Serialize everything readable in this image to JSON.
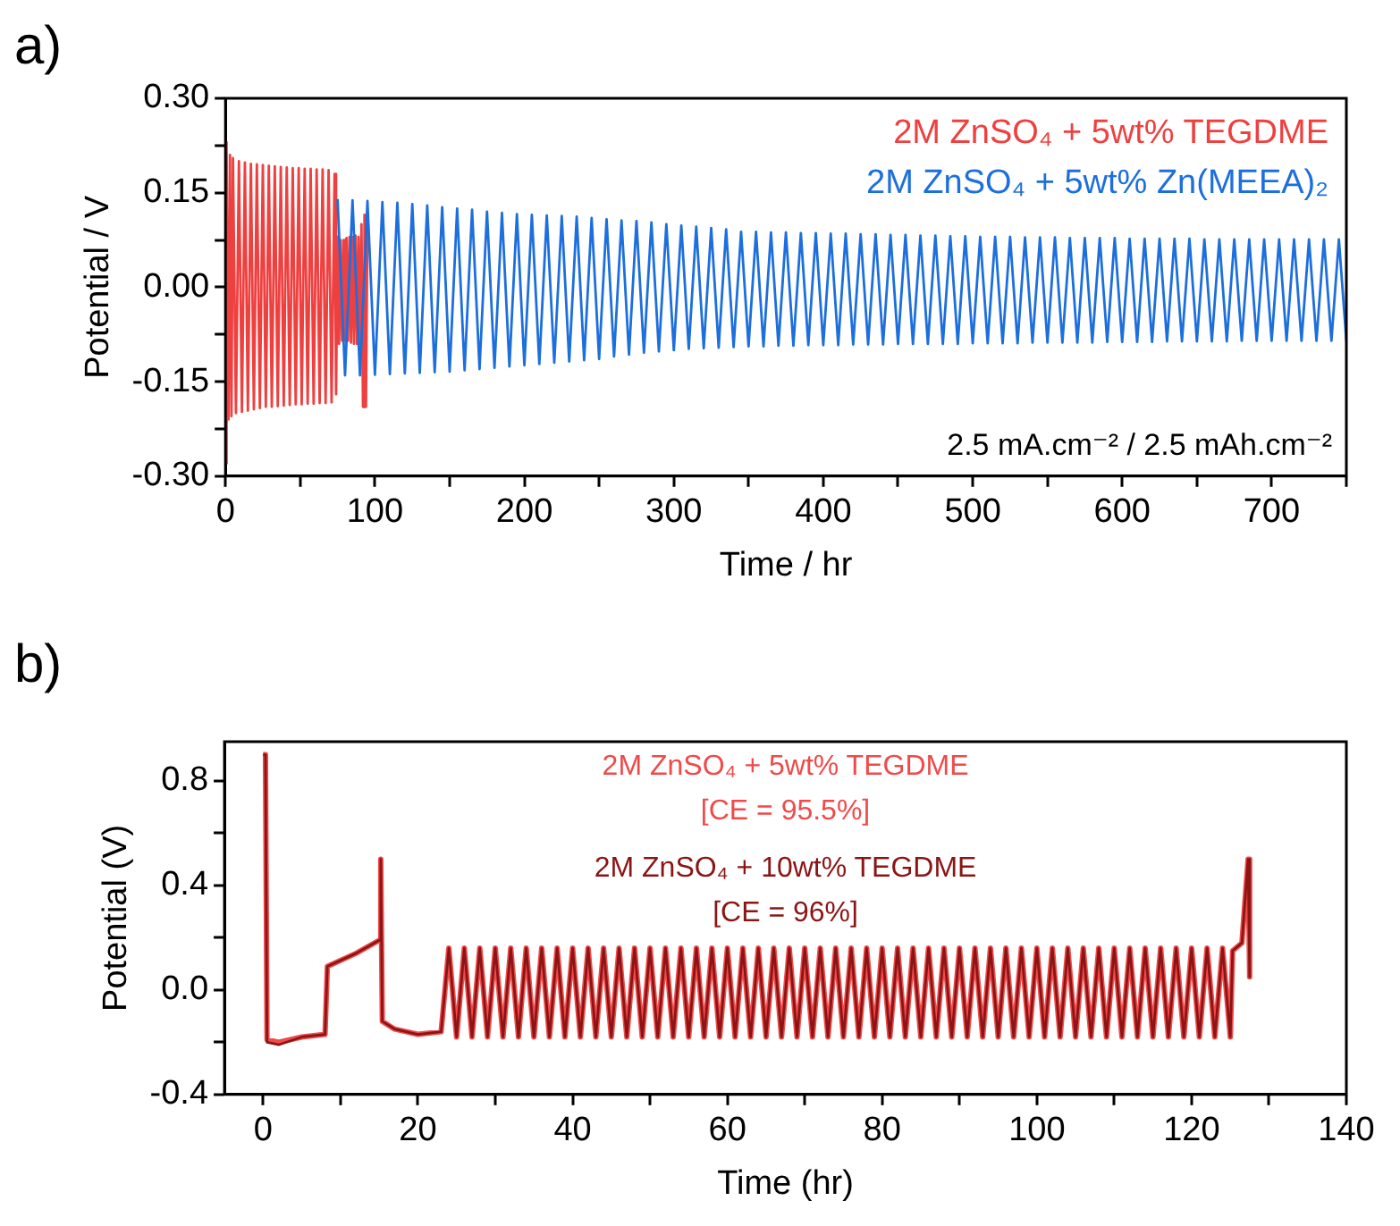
{
  "chart_data": [
    {
      "type": "line",
      "title": "a)",
      "xlabel": "Time / hr",
      "ylabel": "Potential / V",
      "xlim": [
        0,
        750
      ],
      "ylim": [
        -0.3,
        0.3
      ],
      "xticks": [
        0,
        {
          "value": 50,
          "label": null
        },
        100,
        {
          "value": 150,
          "label": null
        },
        200,
        {
          "value": 250,
          "label": null
        },
        300,
        {
          "value": 350,
          "label": null
        },
        400,
        {
          "value": 450,
          "label": null
        },
        500,
        {
          "value": 550,
          "label": null
        },
        600,
        {
          "value": 650,
          "label": null
        },
        700,
        {
          "value": 750,
          "label": null
        }
      ],
      "yticks": [
        {
          "value": -0.3,
          "label": "-0.30"
        },
        {
          "value": -0.225,
          "label": null
        },
        {
          "value": -0.15,
          "label": "-0.15"
        },
        {
          "value": -0.075,
          "label": null
        },
        {
          "value": 0,
          "label": "0.00"
        },
        {
          "value": 0.075,
          "label": null
        },
        {
          "value": 0.15,
          "label": "0.15"
        },
        {
          "value": 0.225,
          "label": null
        },
        {
          "value": 0.3,
          "label": "0.30"
        }
      ],
      "legend": "top right",
      "marker": "none",
      "line_style": "solid",
      "annotations": [
        "2.5 mA.cm⁻² / 2.5 mAh.cm⁻²"
      ],
      "series": [
        {
          "name": "2M ZnSO₄ + 5wt% TEGDME",
          "color": "#ef4040",
          "x": [
            0,
            0.5,
            1,
            2,
            3,
            4,
            5,
            7,
            9,
            11,
            13,
            15,
            17,
            19,
            21,
            23,
            25,
            27,
            29,
            31,
            33,
            35,
            37,
            39,
            41,
            43,
            45,
            47,
            49,
            51,
            53,
            55,
            57,
            59,
            61,
            63,
            65,
            67,
            69,
            71,
            73,
            74,
            75,
            76,
            77,
            78,
            79,
            80,
            81,
            82,
            83,
            84,
            85,
            86,
            87,
            88,
            89,
            90,
            91,
            92,
            93,
            94,
            95
          ],
          "values": [
            0.23,
            -0.28,
            0.22,
            -0.21,
            0.21,
            -0.205,
            0.205,
            -0.2,
            0.2,
            -0.198,
            0.198,
            -0.196,
            0.196,
            -0.194,
            0.195,
            -0.192,
            0.194,
            -0.19,
            0.193,
            -0.19,
            0.192,
            -0.189,
            0.191,
            -0.188,
            0.19,
            -0.187,
            0.189,
            -0.186,
            0.189,
            -0.186,
            0.188,
            -0.185,
            0.188,
            -0.185,
            0.187,
            -0.184,
            0.187,
            -0.184,
            0.186,
            -0.183,
            0.18,
            -0.17,
            0.08,
            -0.09,
            0.075,
            -0.085,
            0.075,
            -0.085,
            0.078,
            -0.085,
            0.08,
            -0.088,
            0.08,
            -0.09,
            0.082,
            -0.09,
            0.08,
            -0.09,
            0.1,
            -0.19,
            0.115,
            -0.19,
            0.11
          ]
        },
        {
          "name": "2M ZnSO₄ + 5wt% Zn(MEEA)₂",
          "color": "#1c6fdc",
          "x": [
            75,
            80,
            85,
            90,
            95,
            100,
            105,
            110,
            115,
            120,
            125,
            130,
            135,
            140,
            145,
            150,
            155,
            160,
            165,
            170,
            175,
            180,
            185,
            190,
            195,
            200,
            205,
            210,
            215,
            220,
            225,
            230,
            235,
            240,
            245,
            250,
            255,
            260,
            265,
            270,
            275,
            280,
            285,
            290,
            295,
            300,
            305,
            310,
            315,
            320,
            325,
            330,
            335,
            340,
            345,
            350,
            355,
            360,
            365,
            370,
            375,
            380,
            385,
            390,
            395,
            400,
            405,
            410,
            415,
            420,
            425,
            430,
            435,
            440,
            445,
            450,
            455,
            460,
            465,
            470,
            475,
            480,
            485,
            490,
            495,
            500,
            505,
            510,
            515,
            520,
            525,
            530,
            535,
            540,
            545,
            550,
            555,
            560,
            565,
            570,
            575,
            580,
            585,
            590,
            595,
            600,
            605,
            610,
            615,
            620,
            625,
            630,
            635,
            640,
            645,
            650,
            655,
            660,
            665,
            670,
            675,
            680,
            685,
            690,
            695,
            700,
            705,
            710,
            715,
            720,
            725,
            730,
            735,
            740,
            745,
            750
          ],
          "values": [
            0.14,
            -0.14,
            0.138,
            -0.14,
            0.137,
            -0.139,
            0.135,
            -0.138,
            0.134,
            -0.137,
            0.132,
            -0.136,
            0.13,
            -0.135,
            0.127,
            -0.134,
            0.125,
            -0.132,
            0.123,
            -0.13,
            0.12,
            -0.128,
            0.118,
            -0.126,
            0.116,
            -0.124,
            0.115,
            -0.122,
            0.114,
            -0.12,
            0.113,
            -0.118,
            0.112,
            -0.116,
            0.11,
            -0.114,
            0.108,
            -0.11,
            0.106,
            -0.107,
            0.105,
            -0.104,
            0.103,
            -0.102,
            0.1,
            -0.1,
            0.098,
            -0.098,
            0.096,
            -0.097,
            0.094,
            -0.096,
            0.092,
            -0.095,
            0.088,
            -0.094,
            0.088,
            -0.094,
            0.087,
            -0.093,
            0.087,
            -0.093,
            0.086,
            -0.092,
            0.086,
            -0.092,
            0.085,
            -0.092,
            0.085,
            -0.091,
            0.084,
            -0.091,
            0.084,
            -0.091,
            0.083,
            -0.09,
            0.083,
            -0.09,
            0.082,
            -0.09,
            0.082,
            -0.09,
            0.081,
            -0.09,
            0.081,
            -0.089,
            0.08,
            -0.089,
            0.08,
            -0.089,
            0.08,
            -0.089,
            0.079,
            -0.088,
            0.079,
            -0.088,
            0.079,
            -0.088,
            0.078,
            -0.088,
            0.078,
            -0.088,
            0.078,
            -0.087,
            0.078,
            -0.087,
            0.077,
            -0.087,
            0.077,
            -0.087,
            0.077,
            -0.086,
            0.077,
            -0.086,
            0.077,
            -0.086,
            0.076,
            -0.086,
            0.076,
            -0.086,
            0.076,
            -0.085,
            0.076,
            -0.085,
            0.076,
            -0.085,
            0.076,
            -0.085,
            0.076,
            -0.085,
            0.076,
            -0.085,
            0.076,
            -0.085,
            0.076,
            -0.085
          ]
        }
      ]
    },
    {
      "type": "line",
      "title": "b)",
      "xlabel": "Time (hr)",
      "ylabel": "Potential (V)",
      "xlim": [
        -5,
        140
      ],
      "ylim": [
        -0.4,
        0.95
      ],
      "xticks": [
        0,
        {
          "value": 10,
          "label": null
        },
        20,
        {
          "value": 30,
          "label": null
        },
        40,
        {
          "value": 50,
          "label": null
        },
        60,
        {
          "value": 70,
          "label": null
        },
        80,
        {
          "value": 90,
          "label": null
        },
        100,
        {
          "value": 110,
          "label": null
        },
        120,
        {
          "value": 130,
          "label": null
        },
        140
      ],
      "yticks": [
        {
          "value": -0.4,
          "label": "-0.4"
        },
        {
          "value": -0.2,
          "label": null
        },
        {
          "value": 0,
          "label": "0.0"
        },
        {
          "value": 0.2,
          "label": null
        },
        {
          "value": 0.4,
          "label": "0.4"
        },
        {
          "value": 0.6,
          "label": null
        },
        {
          "value": 0.8,
          "label": "0.8"
        }
      ],
      "legend": "top",
      "marker": "none",
      "line_style": "solid",
      "annotations": [
        "[CE = 95.5%]",
        "[CE = 96%]"
      ],
      "series": [
        {
          "name": "2M ZnSO₄ + 5wt% TEGDME",
          "color": "#f04a4a",
          "x": [
            0,
            0.3,
            0.5,
            2,
            5,
            8,
            8.3,
            12,
            15,
            15.2,
            15.4,
            17,
            20,
            23,
            24,
            25,
            26,
            27,
            28,
            29,
            30,
            31,
            32,
            33,
            34,
            35,
            36,
            37,
            38,
            39,
            40,
            41,
            42,
            43,
            44,
            45,
            46,
            47,
            48,
            49,
            50,
            51,
            52,
            53,
            54,
            55,
            56,
            57,
            58,
            59,
            60,
            61,
            62,
            63,
            64,
            65,
            66,
            67,
            68,
            69,
            70,
            71,
            72,
            73,
            74,
            75,
            76,
            77,
            78,
            79,
            80,
            81,
            82,
            83,
            84,
            85,
            86,
            87,
            88,
            89,
            90,
            91,
            92,
            93,
            94,
            95,
            96,
            97,
            98,
            99,
            100,
            101,
            102,
            103,
            104,
            105,
            106,
            107,
            108,
            109,
            110,
            111,
            112,
            113,
            114,
            115,
            116,
            117,
            118,
            119,
            120,
            121,
            122,
            123,
            124,
            125,
            125.3,
            126.5,
            127.3,
            127.5
          ],
          "values": [
            0.9,
            0.9,
            -0.19,
            -0.2,
            -0.18,
            -0.17,
            0.09,
            0.14,
            0.19,
            0.5,
            -0.12,
            -0.15,
            -0.17,
            -0.16,
            0.16,
            -0.18,
            0.16,
            -0.18,
            0.16,
            -0.18,
            0.16,
            -0.18,
            0.16,
            -0.18,
            0.16,
            -0.18,
            0.16,
            -0.18,
            0.16,
            -0.18,
            0.16,
            -0.18,
            0.16,
            -0.18,
            0.16,
            -0.18,
            0.16,
            -0.18,
            0.16,
            -0.18,
            0.16,
            -0.18,
            0.16,
            -0.18,
            0.16,
            -0.18,
            0.16,
            -0.18,
            0.16,
            -0.18,
            0.16,
            -0.18,
            0.16,
            -0.18,
            0.16,
            -0.18,
            0.16,
            -0.18,
            0.16,
            -0.18,
            0.16,
            -0.18,
            0.16,
            -0.18,
            0.16,
            -0.18,
            0.16,
            -0.18,
            0.16,
            -0.18,
            0.16,
            -0.18,
            0.16,
            -0.18,
            0.16,
            -0.18,
            0.16,
            -0.18,
            0.16,
            -0.18,
            0.16,
            -0.18,
            0.16,
            -0.18,
            0.16,
            -0.18,
            0.16,
            -0.18,
            0.16,
            -0.18,
            0.16,
            -0.18,
            0.16,
            -0.18,
            0.16,
            -0.18,
            0.16,
            -0.18,
            0.16,
            -0.18,
            0.16,
            -0.18,
            0.16,
            -0.18,
            0.16,
            -0.18,
            0.16,
            -0.18,
            0.16,
            -0.18,
            0.16,
            -0.18,
            0.16,
            -0.18,
            0.16,
            -0.18,
            0.15,
            0.18,
            0.5,
            0.05
          ]
        },
        {
          "name": "2M ZnSO₄ + 10wt% TEGDME",
          "color": "#8b1414",
          "x": [
            0,
            0.3,
            0.5,
            2,
            5,
            8,
            8.3,
            12,
            15,
            15.2,
            15.4,
            17,
            20,
            23,
            24,
            25,
            26,
            27,
            28,
            29,
            30,
            31,
            32,
            33,
            34,
            35,
            36,
            37,
            38,
            39,
            40,
            41,
            42,
            43,
            44,
            45,
            46,
            47,
            48,
            49,
            50,
            51,
            52,
            53,
            54,
            55,
            56,
            57,
            58,
            59,
            60,
            61,
            62,
            63,
            64,
            65,
            66,
            67,
            68,
            69,
            70,
            71,
            72,
            73,
            74,
            75,
            76,
            77,
            78,
            79,
            80,
            81,
            82,
            83,
            84,
            85,
            86,
            87,
            88,
            89,
            90,
            91,
            92,
            93,
            94,
            95,
            96,
            97,
            98,
            99,
            100,
            101,
            102,
            103,
            104,
            105,
            106,
            107,
            108,
            109,
            110,
            111,
            112,
            113,
            114,
            115,
            116,
            117,
            118,
            119,
            120,
            121,
            122,
            123,
            124,
            125,
            125.3,
            126.5,
            127.3,
            127.5
          ],
          "values": [
            0.9,
            0.9,
            -0.2,
            -0.21,
            -0.18,
            -0.17,
            0.09,
            0.14,
            0.19,
            0.5,
            -0.12,
            -0.15,
            -0.17,
            -0.16,
            0.16,
            -0.18,
            0.16,
            -0.18,
            0.16,
            -0.18,
            0.16,
            -0.18,
            0.16,
            -0.18,
            0.16,
            -0.18,
            0.16,
            -0.18,
            0.16,
            -0.18,
            0.16,
            -0.18,
            0.16,
            -0.18,
            0.16,
            -0.18,
            0.16,
            -0.18,
            0.16,
            -0.18,
            0.16,
            -0.18,
            0.16,
            -0.18,
            0.16,
            -0.18,
            0.16,
            -0.18,
            0.16,
            -0.18,
            0.16,
            -0.18,
            0.16,
            -0.18,
            0.16,
            -0.18,
            0.16,
            -0.18,
            0.16,
            -0.18,
            0.16,
            -0.18,
            0.16,
            -0.18,
            0.16,
            -0.18,
            0.16,
            -0.18,
            0.16,
            -0.18,
            0.16,
            -0.18,
            0.16,
            -0.18,
            0.16,
            -0.18,
            0.16,
            -0.18,
            0.16,
            -0.18,
            0.16,
            -0.18,
            0.16,
            -0.18,
            0.16,
            -0.18,
            0.16,
            -0.18,
            0.16,
            -0.18,
            0.16,
            -0.18,
            0.16,
            -0.18,
            0.16,
            -0.18,
            0.16,
            -0.18,
            0.16,
            -0.18,
            0.16,
            -0.18,
            0.16,
            -0.18,
            0.16,
            -0.18,
            0.16,
            -0.18,
            0.16,
            -0.18,
            0.16,
            -0.18,
            0.16,
            -0.18,
            0.16,
            -0.18,
            0.15,
            0.18,
            0.5,
            0.05
          ]
        }
      ]
    }
  ]
}
